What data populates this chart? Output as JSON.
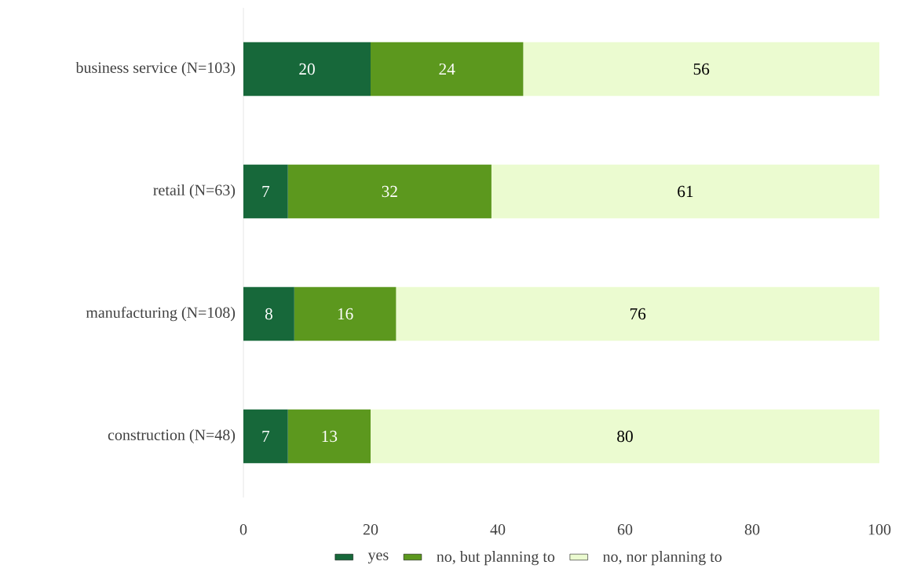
{
  "chart_data": {
    "type": "bar",
    "orientation": "horizontal",
    "stacked": true,
    "data_labels": true,
    "categories": [
      "business service (N=103)",
      "retail (N=63)",
      "manufacturing (N=108)",
      "construction (N=48)"
    ],
    "series": [
      {
        "name": "yes",
        "color": "#17683a",
        "values": [
          20,
          7,
          8,
          7
        ]
      },
      {
        "name": "no, but planning to",
        "color": "#5c981e",
        "values": [
          24,
          32,
          16,
          13
        ]
      },
      {
        "name": "no, nor planning to",
        "color": "#ebfbd0",
        "values": [
          56,
          61,
          76,
          80
        ]
      }
    ],
    "xlim": [
      0,
      100
    ],
    "xticks": [
      0,
      20,
      40,
      60,
      80,
      100
    ],
    "grid": false,
    "legend": "bottom"
  }
}
